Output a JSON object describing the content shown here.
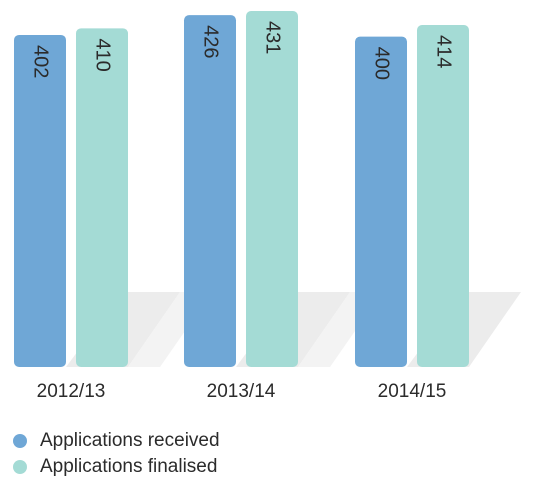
{
  "chart_data": {
    "type": "bar",
    "categories": [
      "2012/13",
      "2013/14",
      "2014/15"
    ],
    "series": [
      {
        "name": "Applications received",
        "color": "#6fa7d6",
        "values": [
          402,
          426,
          400
        ]
      },
      {
        "name": "Applications finalised",
        "color": "#a4dbd5",
        "values": [
          410,
          431,
          414
        ]
      }
    ]
  }
}
